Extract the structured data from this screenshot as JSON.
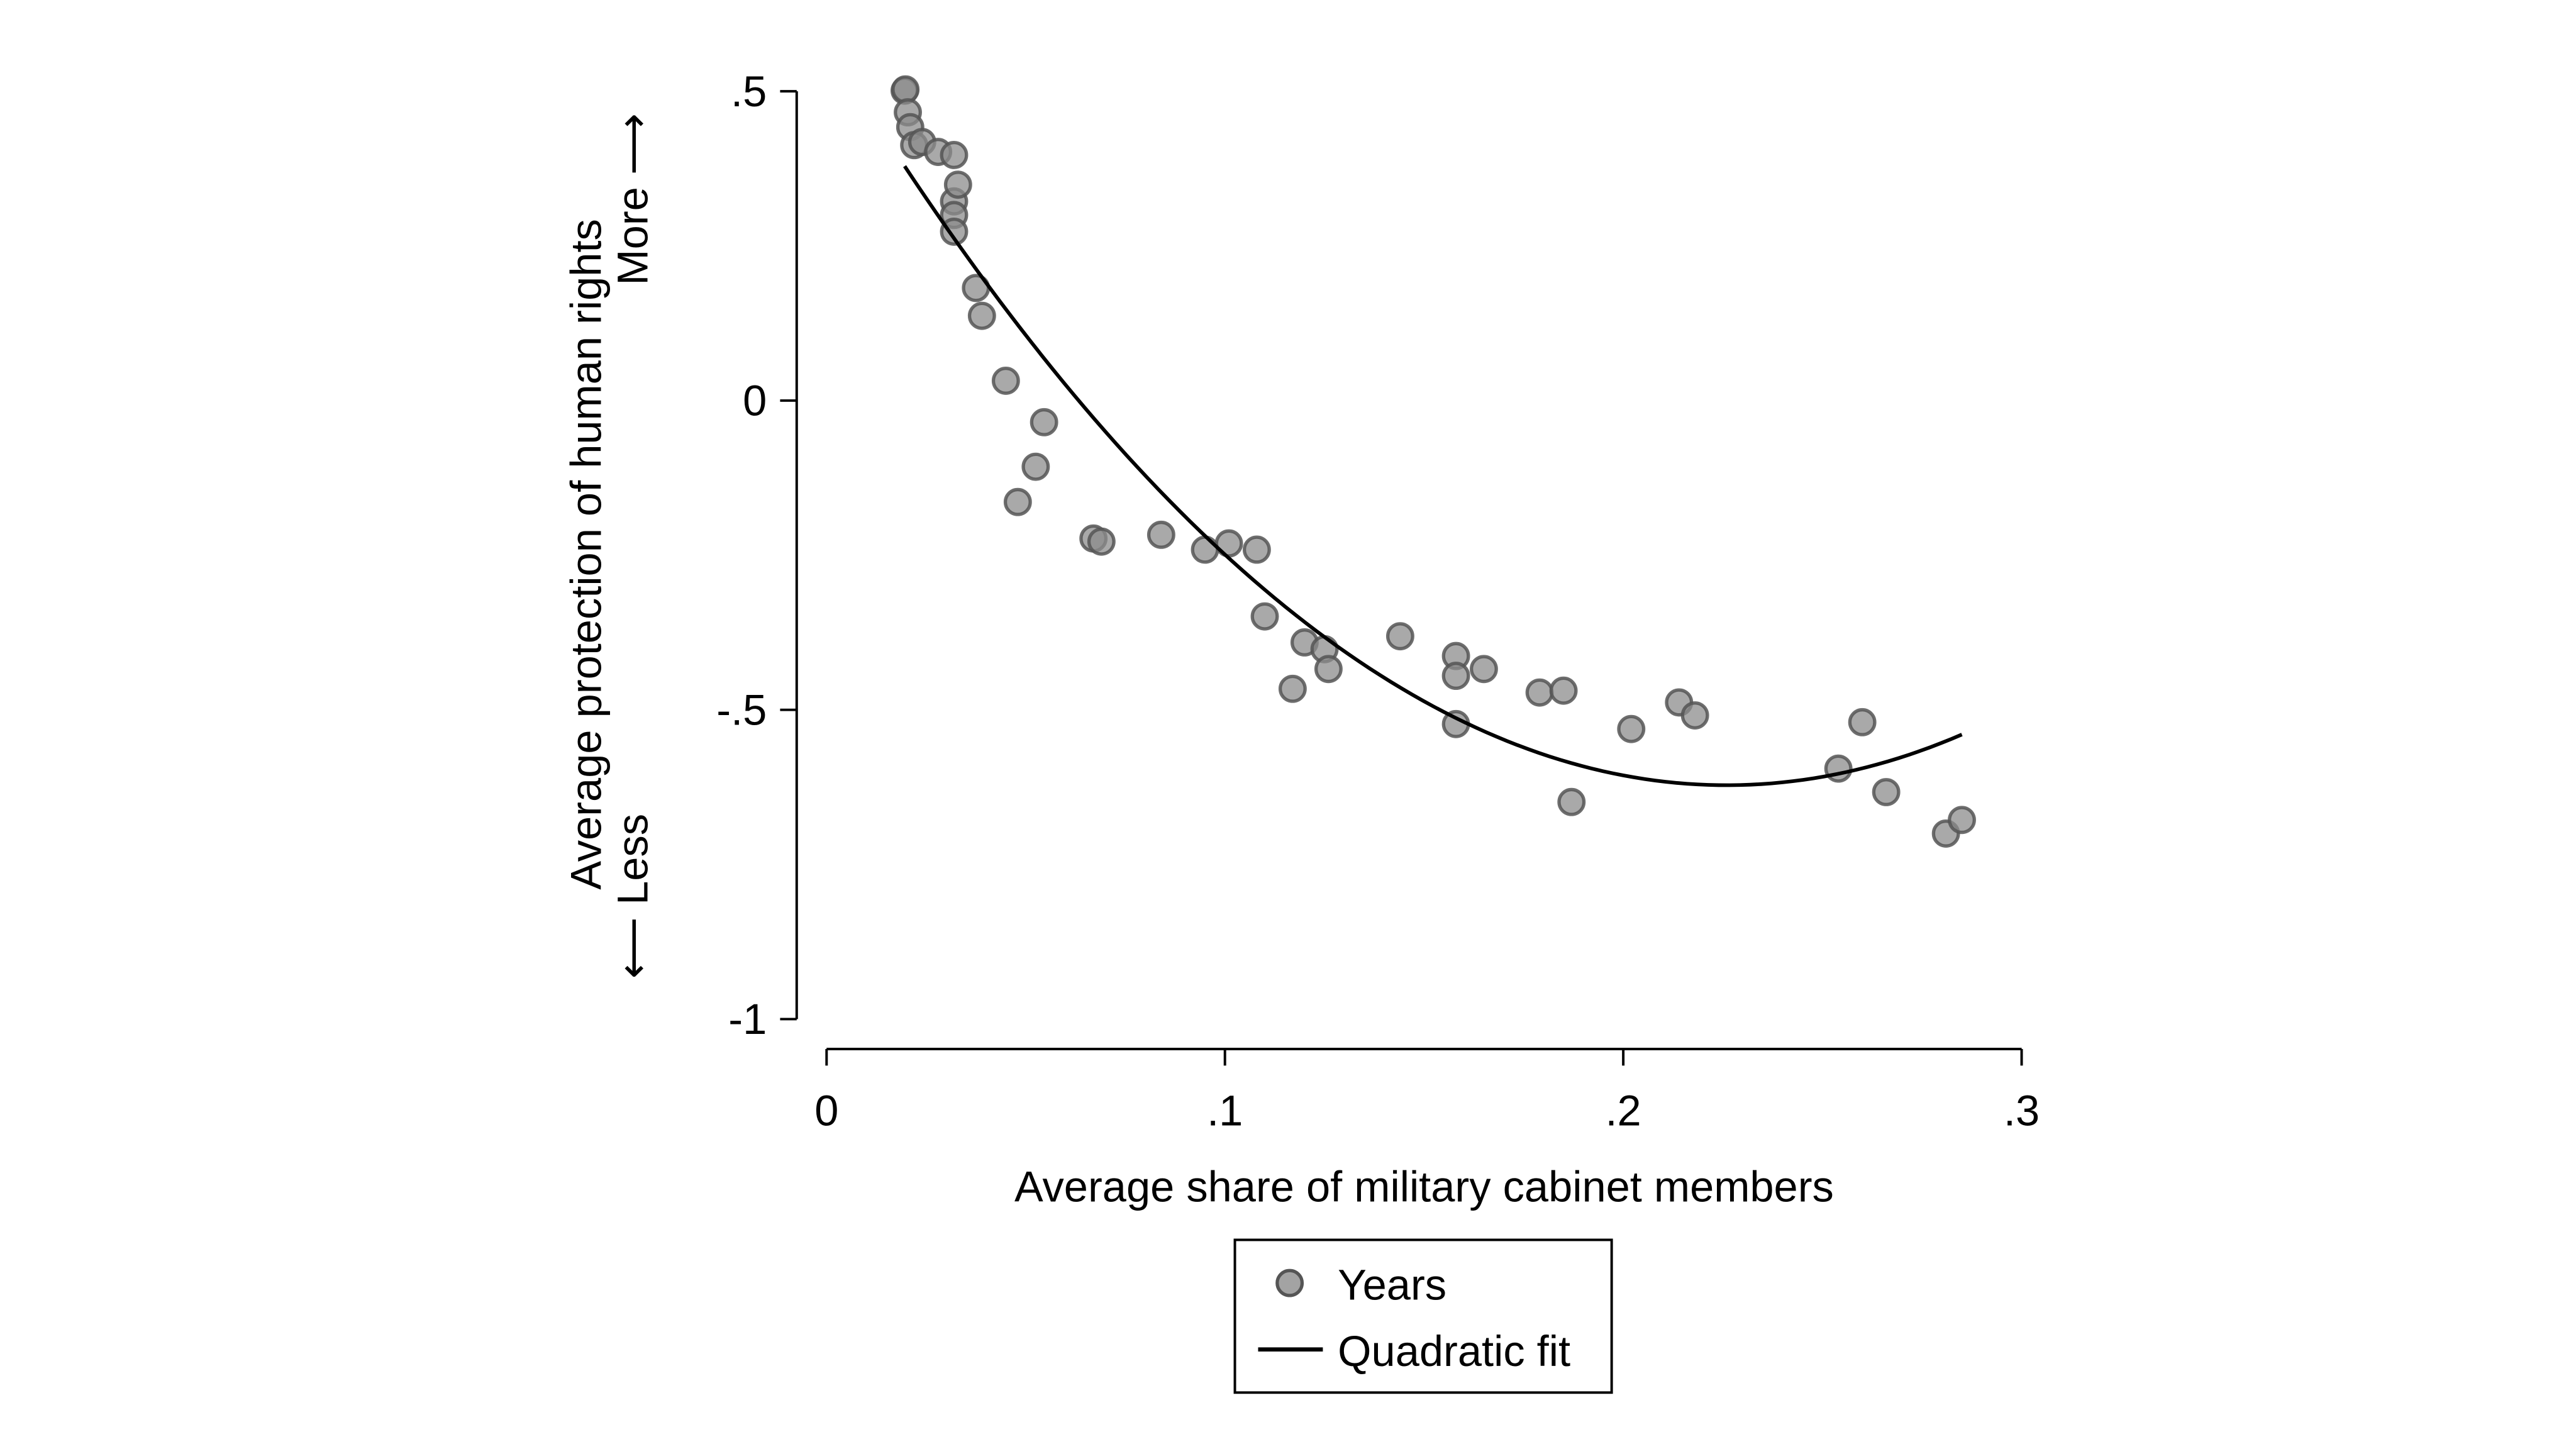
{
  "chart_data": {
    "type": "scatter",
    "xlabel": "Average share of military cabinet members",
    "ylabel": "Average protection of human rights",
    "ylabel_less": "⟵ Less",
    "ylabel_more": "More ⟶",
    "xlim": [
      0,
      0.3
    ],
    "ylim": [
      -1,
      0.5
    ],
    "x_ticks": [
      {
        "v": 0,
        "label": "0"
      },
      {
        "v": 0.1,
        "label": ".1"
      },
      {
        "v": 0.2,
        "label": ".2"
      },
      {
        "v": 0.3,
        "label": ".3"
      }
    ],
    "y_ticks": [
      {
        "v": 0.5,
        "label": ".5"
      },
      {
        "v": 0,
        "label": "0"
      },
      {
        "v": -0.5,
        "label": "-.5"
      },
      {
        "v": -1,
        "label": "-1"
      }
    ],
    "grid": false,
    "legend_position": "bottom",
    "marker_color": "#8c8c8c",
    "marker_edge_color": "#555555",
    "line_color": "#000000",
    "series": [
      {
        "name": "Years",
        "type": "scatter",
        "points": [
          [
            0.0196,
            0.501
          ],
          [
            0.0198,
            0.503
          ],
          [
            0.0204,
            0.466
          ],
          [
            0.021,
            0.442
          ],
          [
            0.022,
            0.413
          ],
          [
            0.024,
            0.418
          ],
          [
            0.028,
            0.402
          ],
          [
            0.032,
            0.397
          ],
          [
            0.032,
            0.322
          ],
          [
            0.032,
            0.3
          ],
          [
            0.033,
            0.349
          ],
          [
            0.032,
            0.273
          ],
          [
            0.0375,
            0.182
          ],
          [
            0.039,
            0.137
          ],
          [
            0.045,
            0.032
          ],
          [
            0.048,
            -0.164
          ],
          [
            0.0525,
            -0.107
          ],
          [
            0.0546,
            -0.035
          ],
          [
            0.067,
            -0.223
          ],
          [
            0.069,
            -0.228
          ],
          [
            0.084,
            -0.217
          ],
          [
            0.095,
            -0.241
          ],
          [
            0.101,
            -0.231
          ],
          [
            0.108,
            -0.241
          ],
          [
            0.11,
            -0.349
          ],
          [
            0.12,
            -0.391
          ],
          [
            0.117,
            -0.466
          ],
          [
            0.125,
            -0.402
          ],
          [
            0.126,
            -0.434
          ],
          [
            0.144,
            -0.381
          ],
          [
            0.158,
            -0.413
          ],
          [
            0.158,
            -0.445
          ],
          [
            0.158,
            -0.523
          ],
          [
            0.165,
            -0.434
          ],
          [
            0.179,
            -0.472
          ],
          [
            0.185,
            -0.469
          ],
          [
            0.187,
            -0.649
          ],
          [
            0.202,
            -0.531
          ],
          [
            0.214,
            -0.488
          ],
          [
            0.218,
            -0.509
          ],
          [
            0.254,
            -0.595
          ],
          [
            0.26,
            -0.52
          ],
          [
            0.266,
            -0.633
          ],
          [
            0.281,
            -0.7
          ],
          [
            0.285,
            -0.678
          ]
        ]
      },
      {
        "name": "Quadratic fit",
        "type": "line",
        "coefficients": {
          "a": 23.5,
          "b": -10.62,
          "c": 0.578
        },
        "x_range": [
          0.0196,
          0.285
        ]
      }
    ]
  }
}
